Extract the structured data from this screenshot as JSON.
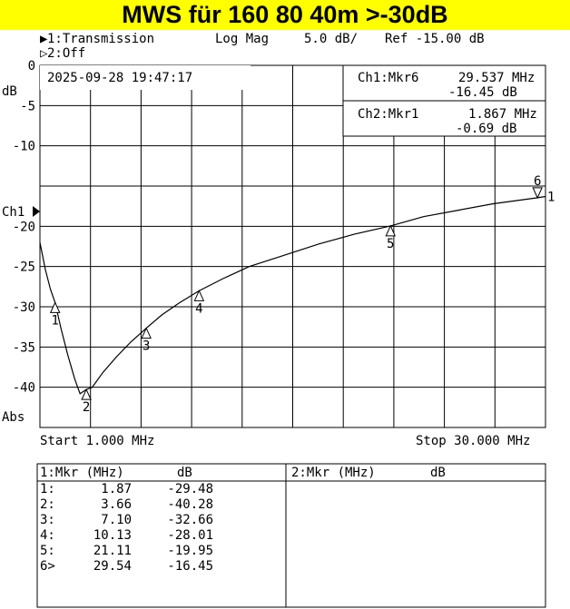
{
  "title": "MWS für 160 80 40m >-30dB",
  "header": {
    "ch1_line": "1:Transmission",
    "ch1_format": "Log Mag",
    "ch1_scale": "5.0 dB/",
    "ch1_ref": "Ref -15.00 dB",
    "ch2_line": "2:Off"
  },
  "datetime": "2025-09-28 19:47:17",
  "marker_boxes": {
    "ch1_label": "Ch1:Mkr6",
    "ch1_freq": "29.537 MHz",
    "ch1_value": "-16.45 dB",
    "ch2_label": "Ch2:Mkr1",
    "ch2_freq": "1.867 MHz",
    "ch2_value": "-0.69 dB"
  },
  "axis": {
    "unit": "dB",
    "ch1_label": "Ch1",
    "abs_label": "Abs",
    "start_label": "Start 1.000 MHz",
    "stop_label": "Stop 30.000 MHz",
    "y_tick_labels": [
      "0",
      "-5",
      "-10",
      "-20",
      "-25",
      "-30",
      "-35",
      "-40"
    ]
  },
  "chart_data": {
    "type": "line",
    "xlabel": "",
    "ylabel": "dB",
    "x_range_mhz": [
      1,
      30
    ],
    "ylim": [
      -45,
      0
    ],
    "y_ref": -15,
    "y_divisions": 9,
    "x_divisions": 10,
    "grid": true,
    "series": [
      {
        "x": [
          1.0,
          1.3,
          1.6,
          1.87,
          2.2,
          2.6,
          3.0,
          3.3,
          3.66,
          4.0,
          4.6,
          5.4,
          6.2,
          7.1,
          8.0,
          9.0,
          10.13,
          11.5,
          13.0,
          15.0,
          17.0,
          19.0,
          21.11,
          23.0,
          25.0,
          27.0,
          29.54,
          30.0
        ],
        "y": [
          -22.0,
          -25.3,
          -27.8,
          -29.48,
          -32.6,
          -36.0,
          -39.0,
          -40.8,
          -40.28,
          -40.0,
          -38.2,
          -36.2,
          -34.4,
          -32.66,
          -31.0,
          -29.5,
          -28.01,
          -26.5,
          -25.0,
          -23.6,
          -22.2,
          -21.0,
          -19.95,
          -18.8,
          -18.0,
          -17.2,
          -16.45,
          -16.3
        ]
      }
    ],
    "markers": [
      {
        "id": "1",
        "freq_mhz": 1.87,
        "value_db": -29.48
      },
      {
        "id": "2",
        "freq_mhz": 3.66,
        "value_db": -40.28
      },
      {
        "id": "3",
        "freq_mhz": 7.1,
        "value_db": -32.66
      },
      {
        "id": "4",
        "freq_mhz": 10.13,
        "value_db": -28.01
      },
      {
        "id": "5",
        "freq_mhz": 21.11,
        "value_db": -19.95
      },
      {
        "id": "6",
        "freq_mhz": 29.54,
        "value_db": -16.45
      }
    ],
    "end_marker_label": "1"
  },
  "marker_table": {
    "ch1_header": "1:Mkr (MHz)",
    "ch1_unit_header": "dB",
    "ch2_header": "2:Mkr (MHz)",
    "ch2_unit_header": "dB",
    "rows": [
      {
        "id": "1:",
        "freq": "1.87",
        "value": "-29.48"
      },
      {
        "id": "2:",
        "freq": "3.66",
        "value": "-40.28"
      },
      {
        "id": "3:",
        "freq": "7.10",
        "value": "-32.66"
      },
      {
        "id": "4:",
        "freq": "10.13",
        "value": "-28.01"
      },
      {
        "id": "5:",
        "freq": "21.11",
        "value": "-19.95"
      },
      {
        "id": "6>",
        "freq": "29.54",
        "value": "-16.45"
      }
    ]
  }
}
